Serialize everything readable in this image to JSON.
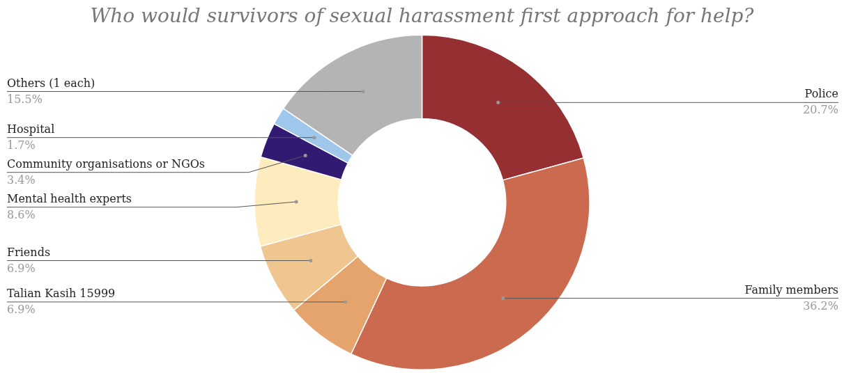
{
  "chart_data": {
    "type": "donut",
    "title": "Who would survivors of sexual harassment first approach for help?",
    "categories": [
      "Police",
      "Family members",
      "Talian Kasih 15999",
      "Friends",
      "Mental health experts",
      "Community organisations or NGOs",
      "Hospital",
      "Others (1 each)"
    ],
    "values": [
      20.7,
      36.2,
      6.9,
      6.9,
      8.6,
      3.4,
      1.7,
      15.5
    ],
    "colors": [
      "#952f32",
      "#cc6a4f",
      "#e4a46c",
      "#f0c690",
      "#feebbe",
      "#321a72",
      "#9fc7ec",
      "#b4b4b4"
    ],
    "value_labels": [
      "20.7%",
      "36.2%",
      "6.9%",
      "6.9%",
      "8.6%",
      "3.4%",
      "1.7%",
      "15.5%"
    ],
    "legend": false
  }
}
